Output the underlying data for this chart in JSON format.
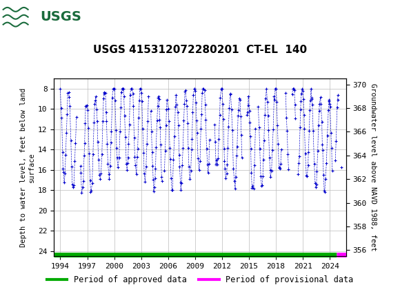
{
  "title": "USGS 415312072280201  CT-EL  140",
  "ylabel_left": "Depth to water level, feet below land\nsurface",
  "ylabel_right": "Groundwater level above NAVD 1988, feet",
  "left_ylim": [
    24.5,
    7.0
  ],
  "right_ylim": [
    355.5,
    370.5
  ],
  "left_yticks": [
    8,
    10,
    12,
    14,
    16,
    18,
    20,
    22,
    24
  ],
  "right_yticks": [
    356,
    358,
    360,
    362,
    364,
    366,
    368,
    370
  ],
  "xlim": [
    1993.3,
    2025.8
  ],
  "xticks": [
    1994,
    1997,
    2000,
    2003,
    2006,
    2009,
    2012,
    2015,
    2018,
    2021,
    2024
  ],
  "header_color": "#1a6b3c",
  "header_text_color": "#ffffff",
  "data_color": "#0000cc",
  "approved_color": "#00aa00",
  "provisional_color": "#ff00ff",
  "background_color": "#ffffff",
  "plot_bg_color": "#ffffff",
  "grid_color": "#bbbbbb",
  "legend_approved": "Period of approved data",
  "legend_provisional": "Period of provisional data"
}
